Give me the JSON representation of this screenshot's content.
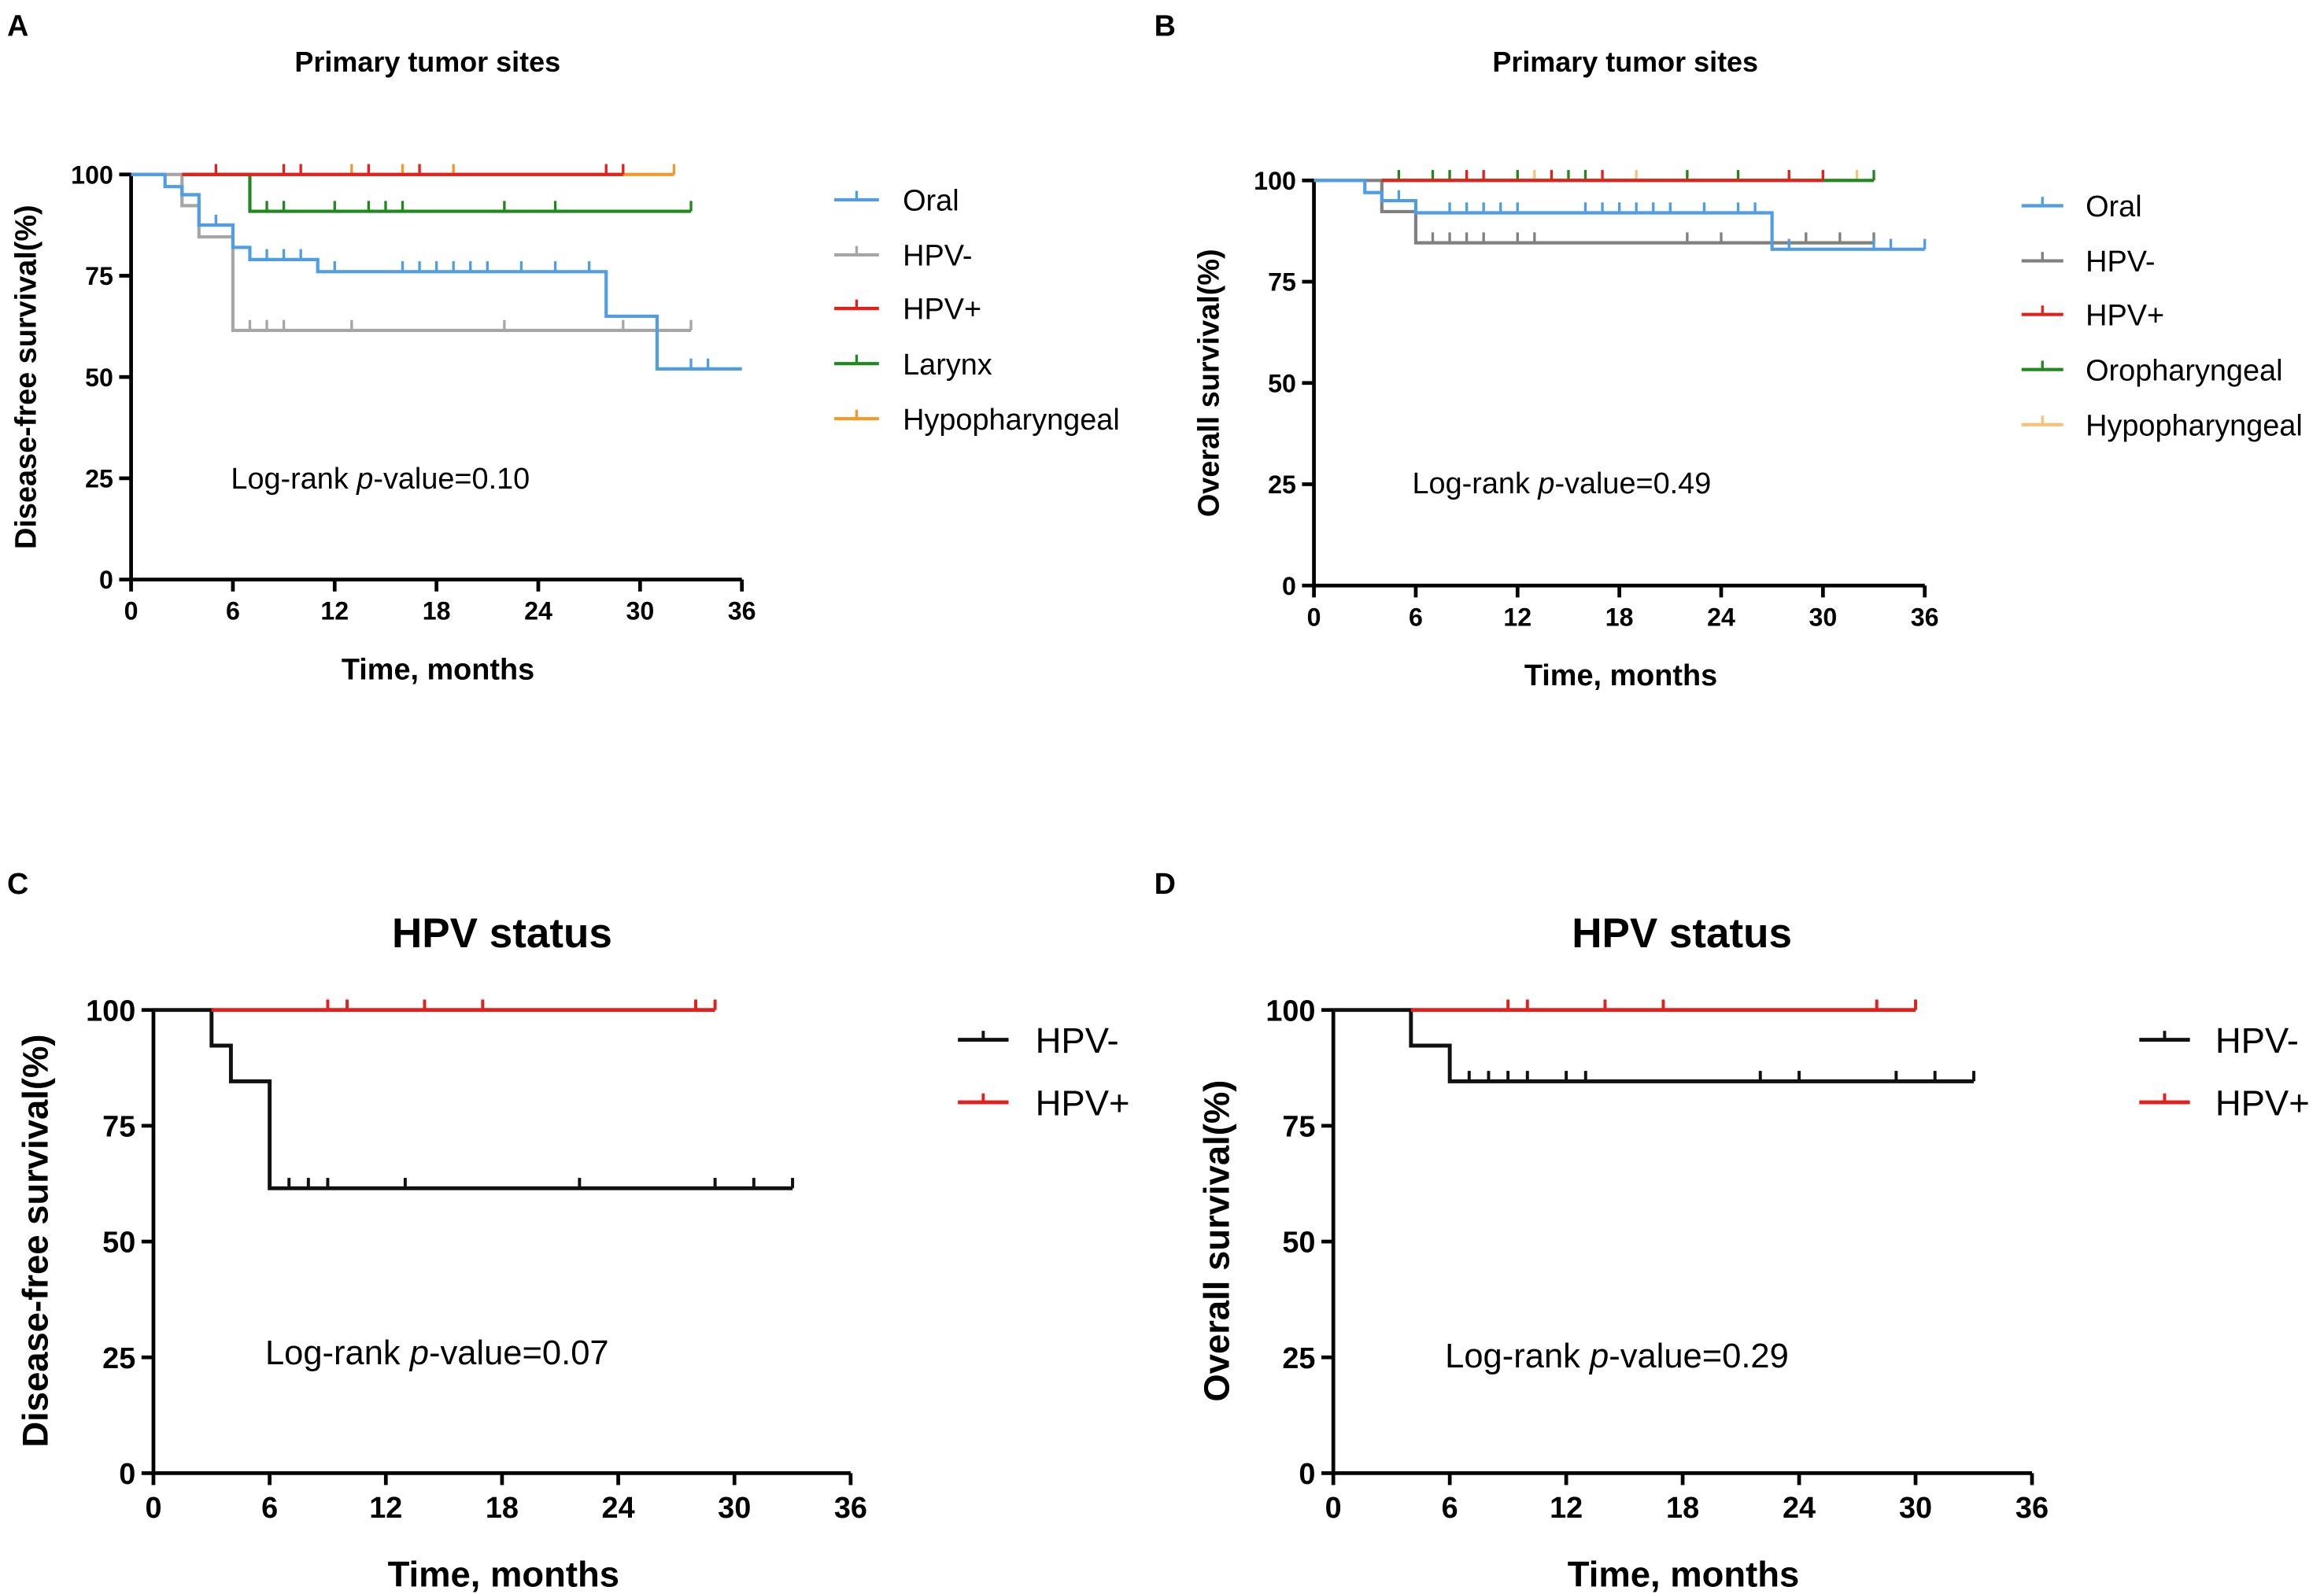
{
  "panel_letters": [
    "A",
    "B",
    "C",
    "D"
  ],
  "chart_data": [
    {
      "panel": "A",
      "type": "line",
      "title": "Primary tumor sites",
      "xlabel": "Time, months",
      "ylabel": "Disease-free survival(%)",
      "xlim": [
        0,
        36
      ],
      "ylim": [
        0,
        100
      ],
      "xticks": [
        0,
        6,
        12,
        18,
        24,
        30,
        36
      ],
      "yticks": [
        0,
        25,
        50,
        75,
        100
      ],
      "annotation": {
        "prefix": "Log-rank ",
        "italic": "p",
        "suffix": "-value=0.10"
      },
      "legend_position": "right",
      "series": [
        {
          "name": "Oral",
          "color": "#4f9ee3",
          "steps": [
            [
              0,
              100
            ],
            [
              2,
              97
            ],
            [
              3,
              95
            ],
            [
              4,
              87.5
            ],
            [
              6,
              82
            ],
            [
              7,
              79
            ],
            [
              11,
              76
            ],
            [
              28,
              65
            ],
            [
              31,
              52
            ]
          ],
          "end": 36,
          "censored": [
            5,
            8,
            9,
            10,
            12,
            16,
            17,
            18,
            19,
            20,
            21,
            23,
            25,
            27,
            33,
            34
          ]
        },
        {
          "name": "HPV-",
          "color": "#a6a6a6",
          "steps": [
            [
              0,
              100
            ],
            [
              3,
              92.3
            ],
            [
              4,
              84.6
            ],
            [
              6,
              61.5
            ]
          ],
          "end": 33,
          "censored": [
            7,
            8,
            9,
            13,
            22,
            29,
            33
          ]
        },
        {
          "name": "HPV+",
          "color": "#e3211c",
          "steps": [
            [
              3,
              100
            ]
          ],
          "end": 29,
          "censored": [
            5,
            9,
            10,
            14,
            17,
            28,
            29
          ]
        },
        {
          "name": "Larynx",
          "color": "#1e8a1e",
          "steps": [
            [
              3,
              100
            ],
            [
              7,
              90.9
            ]
          ],
          "end": 33,
          "censored": [
            8,
            9,
            12,
            14,
            15,
            16,
            22,
            25,
            33
          ]
        },
        {
          "name": "Hypopharyngeal",
          "color": "#f09a2a",
          "steps": [
            [
              3,
              100
            ]
          ],
          "end": 32,
          "censored": [
            13,
            16,
            19,
            32
          ]
        }
      ],
      "draw_order": [
        4,
        3,
        1,
        0,
        2
      ]
    },
    {
      "panel": "B",
      "type": "line",
      "title": "Primary tumor sites",
      "xlabel": "Time, months",
      "ylabel": "Overall survival(%)",
      "xlim": [
        0,
        36
      ],
      "ylim": [
        0,
        100
      ],
      "xticks": [
        0,
        6,
        12,
        18,
        24,
        30,
        36
      ],
      "yticks": [
        0,
        25,
        50,
        75,
        100
      ],
      "annotation": {
        "prefix": "Log-rank ",
        "italic": "p",
        "suffix": "-value=0.49"
      },
      "legend_position": "right",
      "series": [
        {
          "name": "Oral",
          "color": "#4f9ee3",
          "steps": [
            [
              0,
              100
            ],
            [
              3,
              97
            ],
            [
              4,
              95
            ],
            [
              6,
              92
            ],
            [
              27,
              83
            ]
          ],
          "end": 36,
          "censored": [
            5,
            8,
            9,
            10,
            11,
            12,
            16,
            17,
            18,
            19,
            20,
            21,
            23,
            25,
            26,
            28,
            33,
            34,
            36
          ]
        },
        {
          "name": "HPV-",
          "color": "#808080",
          "steps": [
            [
              0,
              100
            ],
            [
              4,
              92.3
            ],
            [
              6,
              84.6
            ]
          ],
          "end": 33,
          "censored": [
            7,
            8,
            9,
            10,
            12,
            13,
            22,
            24,
            29,
            31,
            33
          ]
        },
        {
          "name": "HPV+",
          "color": "#e3211c",
          "steps": [
            [
              4,
              100
            ]
          ],
          "end": 30,
          "censored": [
            9,
            10,
            14,
            17,
            28,
            30
          ]
        },
        {
          "name": "Oropharyngeal",
          "color": "#1e8a1e",
          "steps": [
            [
              4,
              100
            ]
          ],
          "end": 33,
          "censored": [
            5,
            7,
            8,
            12,
            15,
            16,
            22,
            25,
            33
          ]
        },
        {
          "name": "Hypopharyngeal",
          "color": "#f5c27a",
          "steps": [
            [
              4,
              100
            ]
          ],
          "end": 32,
          "censored": [
            13,
            19,
            32
          ]
        }
      ],
      "draw_order": [
        4,
        3,
        1,
        0,
        2
      ]
    },
    {
      "panel": "C",
      "type": "line",
      "title": "HPV status",
      "xlabel": "Time, months",
      "ylabel": "Disease-free survival(%)",
      "xlim": [
        0,
        36
      ],
      "ylim": [
        0,
        100
      ],
      "xticks": [
        0,
        6,
        12,
        18,
        24,
        30,
        36
      ],
      "yticks": [
        0,
        25,
        50,
        75,
        100
      ],
      "annotation": {
        "prefix": "Log-rank ",
        "italic": "p",
        "suffix": "-value=0.07"
      },
      "legend_position": "right",
      "series": [
        {
          "name": "HPV-",
          "color": "#111111",
          "steps": [
            [
              0,
              100
            ],
            [
              3,
              92.3
            ],
            [
              4,
              84.6
            ],
            [
              6,
              61.5
            ]
          ],
          "end": 33,
          "censored": [
            7,
            8,
            9,
            13,
            22,
            29,
            31,
            33
          ]
        },
        {
          "name": "HPV+",
          "color": "#e3211c",
          "steps": [
            [
              3,
              100
            ]
          ],
          "end": 29,
          "censored": [
            9,
            10,
            14,
            17,
            28,
            29
          ]
        }
      ],
      "draw_order": [
        0,
        1
      ]
    },
    {
      "panel": "D",
      "type": "line",
      "title": "HPV status",
      "xlabel": "Time, months",
      "ylabel": "Overall survival(%)",
      "xlim": [
        0,
        36
      ],
      "ylim": [
        0,
        100
      ],
      "xticks": [
        0,
        6,
        12,
        18,
        24,
        30,
        36
      ],
      "yticks": [
        0,
        25,
        50,
        75,
        100
      ],
      "annotation": {
        "prefix": "Log-rank ",
        "italic": "p",
        "suffix": "-value=0.29"
      },
      "legend_position": "right",
      "series": [
        {
          "name": "HPV-",
          "color": "#111111",
          "steps": [
            [
              0,
              100
            ],
            [
              4,
              92.3
            ],
            [
              6,
              84.6
            ]
          ],
          "end": 33,
          "censored": [
            7,
            8,
            9,
            10,
            12,
            13,
            22,
            24,
            29,
            31,
            33
          ]
        },
        {
          "name": "HPV+",
          "color": "#e3211c",
          "steps": [
            [
              4,
              100
            ]
          ],
          "end": 30,
          "censored": [
            9,
            10,
            14,
            17,
            28,
            30
          ]
        }
      ],
      "draw_order": [
        0,
        1
      ]
    }
  ]
}
